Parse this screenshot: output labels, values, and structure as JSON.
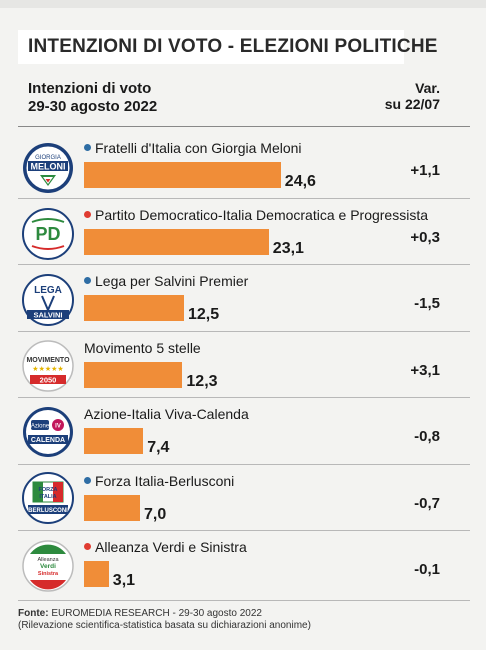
{
  "title": "INTENZIONI DI VOTO - ELEZIONI POLITICHE",
  "header": {
    "left_line1": "Intenzioni di voto",
    "left_line2": "29-30 agosto 2022",
    "right_line1": "Var.",
    "right_line2": "su 22/07"
  },
  "colors": {
    "bar": "#f08d38",
    "dot_blue": "#2e6da4",
    "dot_red": "#e03c31"
  },
  "logos": {
    "fdi": {
      "icon": "fratelli-italia-logo",
      "text": [
        "GIORGIA",
        "MELONI"
      ]
    },
    "pd": {
      "icon": "pd-logo",
      "text": [
        "PD"
      ]
    },
    "lega": {
      "icon": "lega-logo",
      "text": [
        "LEGA",
        "SALVINI"
      ]
    },
    "m5s": {
      "icon": "m5s-logo",
      "text": [
        "MOVIMENTO",
        "2050"
      ]
    },
    "azione": {
      "icon": "azione-iv-logo",
      "text": [
        "Azione",
        "IV",
        "CALENDA"
      ]
    },
    "fi": {
      "icon": "forza-italia-logo",
      "text": [
        "FORZA",
        "ITALIA",
        "BERLUSCONI"
      ]
    },
    "avs": {
      "icon": "avs-logo",
      "text": [
        "Alleanza",
        "Verdi",
        "Sinistra"
      ]
    }
  },
  "chart_data": {
    "type": "bar",
    "title": "INTENZIONI DI VOTO - ELEZIONI POLITICHE",
    "subtitle": "Intenzioni di voto 29-30 agosto 2022",
    "categories": [
      "Fratelli d'Italia con Giorgia Meloni",
      "Partito Democratico-Italia Democratica e Progressista",
      "Lega per Salvini Premier",
      "Movimento 5 stelle",
      "Azione-Italia Viva-Calenda",
      "Forza Italia-Berlusconi",
      "Alleanza Verdi e Sinistra"
    ],
    "values": [
      24.6,
      23.1,
      12.5,
      12.3,
      7.4,
      7.0,
      3.1
    ],
    "value_labels": [
      "24,6",
      "23,1",
      "12,5",
      "12,3",
      "7,4",
      "7,0",
      "3,1"
    ],
    "variation_header": "Var. su 22/07",
    "variations": [
      "+1,1",
      "+0,3",
      "-1,5",
      "+3,1",
      "-0,8",
      "-0,7",
      "-0,1"
    ],
    "coalition_dots": [
      "blue",
      "red",
      "blue",
      "none",
      "none",
      "blue",
      "red"
    ],
    "orientation": "horizontal",
    "xlim": [
      0,
      26
    ]
  },
  "source": {
    "label": "Fonte:",
    "text": "EUROMEDIA RESEARCH - 29-30 agosto 2022",
    "note": "(Rilevazione scientifica-statistica basata su dichiarazioni anonime)"
  }
}
